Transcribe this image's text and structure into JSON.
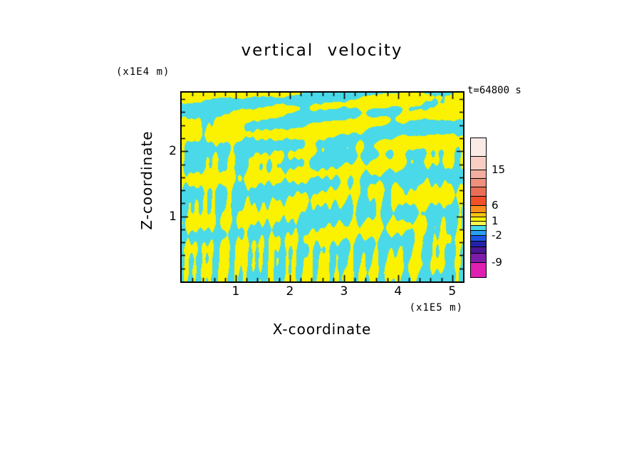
{
  "chart_data": {
    "type": "heatmap",
    "title": "vertical velocity",
    "time_label": "t=64800 s",
    "xlabel": "X-coordinate",
    "x_units_label": "(x1E5 m)",
    "zlabel": "Z-coordinate",
    "z_units_label": "(x1E4 m)",
    "x_range": [
      0,
      5.2
    ],
    "z_range": [
      0,
      2.9
    ],
    "x_major_ticks": [
      1,
      2,
      3,
      4,
      5
    ],
    "z_labeled_ticks": [
      1,
      2
    ],
    "minor_tick_step": 0.2,
    "grid": false,
    "legend_position": "right-colorbar",
    "field": {
      "description": "Two-tone filled contour field of vertical velocity: yellow = positive (updraft), cyan = negative (downdraft). Wavy horizontally stratified bands in the upper part of the domain, breaking into thin vertical plume filaments near the lower boundary.",
      "positive_color": "#FAF200",
      "negative_color": "#4AD9E8",
      "pattern_seed": 11
    },
    "colorbar": {
      "segments": [
        {
          "color": "#FBEBE7",
          "h": 26
        },
        {
          "color": "#F6CEC4",
          "h": 19
        },
        {
          "color": "#F2AFA0",
          "h": 12
        },
        {
          "color": "#EE907C",
          "h": 12
        },
        {
          "color": "#EA6E54",
          "h": 13
        },
        {
          "color": "#F0512A",
          "h": 13
        },
        {
          "color": "#FA8E1C",
          "h": 10
        },
        {
          "color": "#FDC314",
          "h": 6
        },
        {
          "color": "#FAF200",
          "h": 6
        },
        {
          "color": "#F8FA50",
          "h": 6
        },
        {
          "color": "#4AD9E8",
          "h": 7
        },
        {
          "color": "#28A0F0",
          "h": 7
        },
        {
          "color": "#1C55E6",
          "h": 8
        },
        {
          "color": "#2222AA",
          "h": 8
        },
        {
          "color": "#4A1694",
          "h": 9
        },
        {
          "color": "#7E1CA8",
          "h": 13
        },
        {
          "color": "#E020B2",
          "h": 20
        }
      ],
      "labels": [
        {
          "text": "15",
          "offset": 45
        },
        {
          "text": "6",
          "offset": 95
        },
        {
          "text": "1",
          "offset": 117
        },
        {
          "text": "-2",
          "offset": 137
        },
        {
          "text": "-9",
          "offset": 175
        }
      ]
    }
  }
}
